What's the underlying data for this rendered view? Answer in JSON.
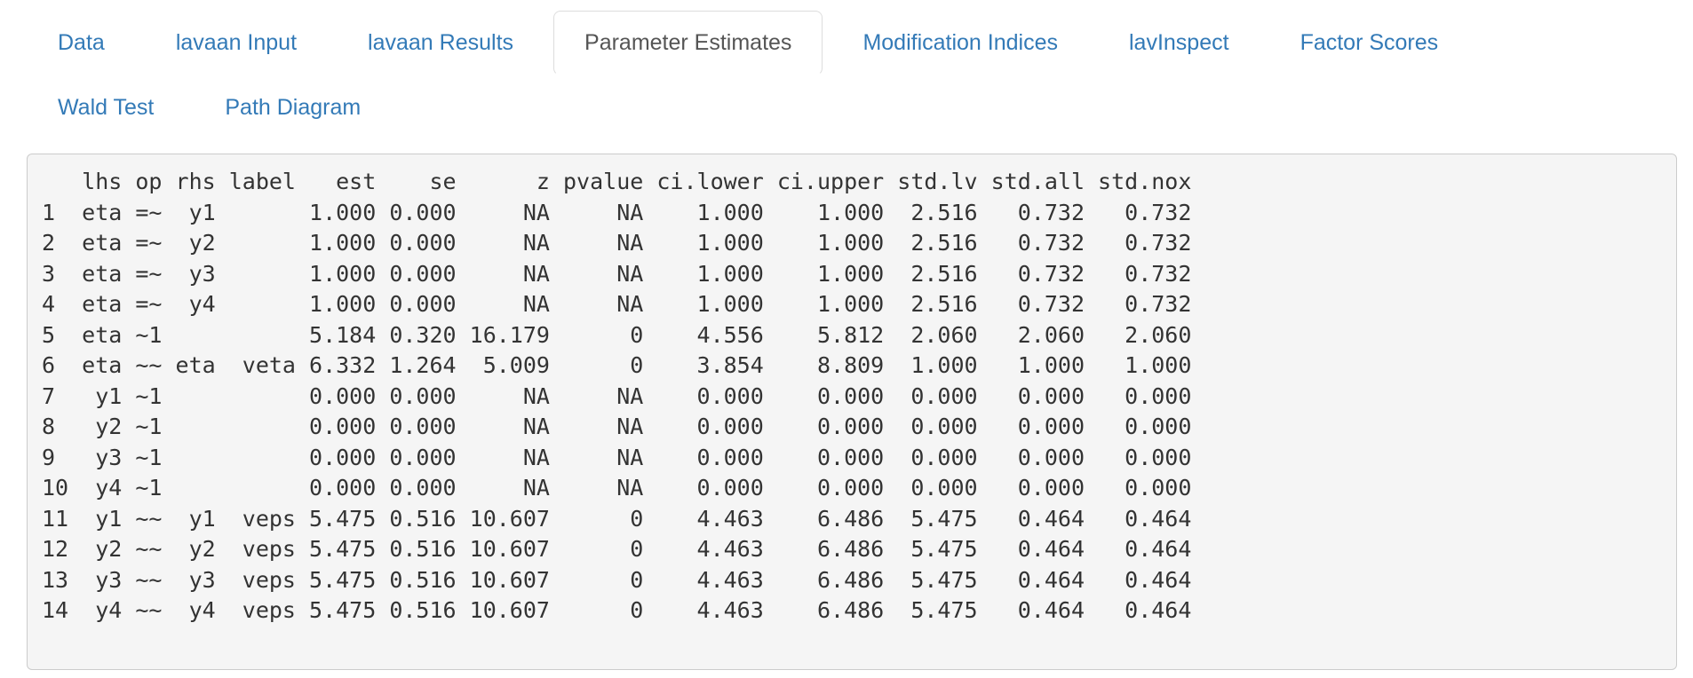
{
  "tabs": {
    "row1": [
      {
        "label": "Data",
        "active": false
      },
      {
        "label": "lavaan Input",
        "active": false
      },
      {
        "label": "lavaan Results",
        "active": false
      },
      {
        "label": "Parameter Estimates",
        "active": true
      },
      {
        "label": "Modification Indices",
        "active": false
      },
      {
        "label": "lavInspect",
        "active": false
      },
      {
        "label": "Factor Scores",
        "active": false
      }
    ],
    "row2": [
      {
        "label": "Wald Test",
        "active": false
      },
      {
        "label": "Path Diagram",
        "active": false
      }
    ]
  },
  "output": {
    "lines": [
      "   lhs op rhs label   est    se      z pvalue ci.lower ci.upper std.lv std.all std.nox",
      "1  eta =~  y1       1.000 0.000     NA     NA    1.000    1.000  2.516   0.732   0.732",
      "2  eta =~  y2       1.000 0.000     NA     NA    1.000    1.000  2.516   0.732   0.732",
      "3  eta =~  y3       1.000 0.000     NA     NA    1.000    1.000  2.516   0.732   0.732",
      "4  eta =~  y4       1.000 0.000     NA     NA    1.000    1.000  2.516   0.732   0.732",
      "5  eta ~1           5.184 0.320 16.179      0    4.556    5.812  2.060   2.060   2.060",
      "6  eta ~~ eta  veta 6.332 1.264  5.009      0    3.854    8.809  1.000   1.000   1.000",
      "7   y1 ~1           0.000 0.000     NA     NA    0.000    0.000  0.000   0.000   0.000",
      "8   y2 ~1           0.000 0.000     NA     NA    0.000    0.000  0.000   0.000   0.000",
      "9   y3 ~1           0.000 0.000     NA     NA    0.000    0.000  0.000   0.000   0.000",
      "10  y4 ~1           0.000 0.000     NA     NA    0.000    0.000  0.000   0.000   0.000",
      "11  y1 ~~  y1  veps 5.475 0.516 10.607      0    4.463    6.486  5.475   0.464   0.464",
      "12  y2 ~~  y2  veps 5.475 0.516 10.607      0    4.463    6.486  5.475   0.464   0.464",
      "13  y3 ~~  y3  veps 5.475 0.516 10.607      0    4.463    6.486  5.475   0.464   0.464",
      "14  y4 ~~  y4  veps 5.475 0.516 10.607      0    4.463    6.486  5.475   0.464   0.464"
    ]
  },
  "table": {
    "columns": [
      "lhs",
      "op",
      "rhs",
      "label",
      "est",
      "se",
      "z",
      "pvalue",
      "ci.lower",
      "ci.upper",
      "std.lv",
      "std.all",
      "std.nox"
    ],
    "rows": [
      [
        "eta",
        "=~",
        "y1",
        "",
        "1.000",
        "0.000",
        "NA",
        "NA",
        "1.000",
        "1.000",
        "2.516",
        "0.732",
        "0.732"
      ],
      [
        "eta",
        "=~",
        "y2",
        "",
        "1.000",
        "0.000",
        "NA",
        "NA",
        "1.000",
        "1.000",
        "2.516",
        "0.732",
        "0.732"
      ],
      [
        "eta",
        "=~",
        "y3",
        "",
        "1.000",
        "0.000",
        "NA",
        "NA",
        "1.000",
        "1.000",
        "2.516",
        "0.732",
        "0.732"
      ],
      [
        "eta",
        "=~",
        "y4",
        "",
        "1.000",
        "0.000",
        "NA",
        "NA",
        "1.000",
        "1.000",
        "2.516",
        "0.732",
        "0.732"
      ],
      [
        "eta",
        "~1",
        "",
        "",
        "5.184",
        "0.320",
        "16.179",
        "0",
        "4.556",
        "5.812",
        "2.060",
        "2.060",
        "2.060"
      ],
      [
        "eta",
        "~~",
        "eta",
        "veta",
        "6.332",
        "1.264",
        "5.009",
        "0",
        "3.854",
        "8.809",
        "1.000",
        "1.000",
        "1.000"
      ],
      [
        "y1",
        "~1",
        "",
        "",
        "0.000",
        "0.000",
        "NA",
        "NA",
        "0.000",
        "0.000",
        "0.000",
        "0.000",
        "0.000"
      ],
      [
        "y2",
        "~1",
        "",
        "",
        "0.000",
        "0.000",
        "NA",
        "NA",
        "0.000",
        "0.000",
        "0.000",
        "0.000",
        "0.000"
      ],
      [
        "y3",
        "~1",
        "",
        "",
        "0.000",
        "0.000",
        "NA",
        "NA",
        "0.000",
        "0.000",
        "0.000",
        "0.000",
        "0.000"
      ],
      [
        "y4",
        "~1",
        "",
        "",
        "0.000",
        "0.000",
        "NA",
        "NA",
        "0.000",
        "0.000",
        "0.000",
        "0.000",
        "0.000"
      ],
      [
        "y1",
        "~~",
        "y1",
        "veps",
        "5.475",
        "0.516",
        "10.607",
        "0",
        "4.463",
        "6.486",
        "5.475",
        "0.464",
        "0.464"
      ],
      [
        "y2",
        "~~",
        "y2",
        "veps",
        "5.475",
        "0.516",
        "10.607",
        "0",
        "4.463",
        "6.486",
        "5.475",
        "0.464",
        "0.464"
      ],
      [
        "y3",
        "~~",
        "y3",
        "veps",
        "5.475",
        "0.516",
        "10.607",
        "0",
        "4.463",
        "6.486",
        "5.475",
        "0.464",
        "0.464"
      ],
      [
        "y4",
        "~~",
        "y4",
        "veps",
        "5.475",
        "0.516",
        "10.607",
        "0",
        "4.463",
        "6.486",
        "5.475",
        "0.464",
        "0.464"
      ]
    ]
  },
  "colors": {
    "tab_link": "#337ab7",
    "tab_active_text": "#555555",
    "tab_active_border": "#dddddd",
    "panel_background": "#f5f5f5",
    "panel_border": "#cccccc",
    "panel_text": "#333333",
    "page_background": "#ffffff"
  }
}
